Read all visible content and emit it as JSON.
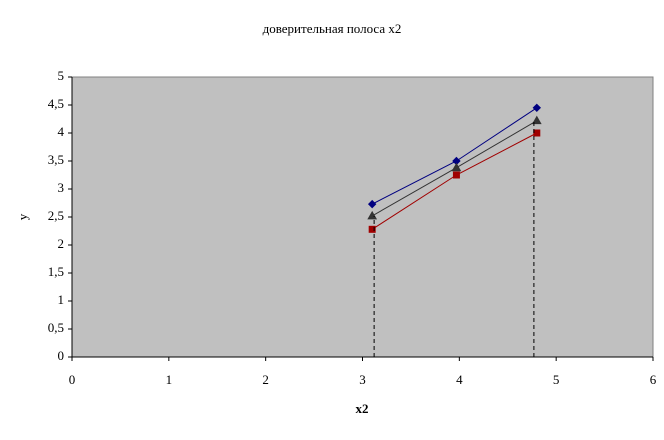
{
  "chart_data": {
    "type": "scatter",
    "title": "доверительная полоса x2",
    "x_label": "x2",
    "y_label": "y",
    "background": "#c0c0c0",
    "xlim": [
      0,
      6
    ],
    "xticks": [
      0,
      1,
      2,
      3,
      4,
      5,
      6
    ],
    "ylim": [
      0,
      5
    ],
    "yticks": [
      0,
      {
        "value": 0.5,
        "label": "0,5"
      },
      1,
      {
        "value": 1.5,
        "label": "1,5"
      },
      2,
      {
        "value": 2.5,
        "label": "2,5"
      },
      3,
      {
        "value": 3.5,
        "label": "3,5"
      },
      4,
      {
        "value": 4.5,
        "label": "4,5"
      },
      5
    ],
    "series": [
      {
        "color": "#000080",
        "marker": "diamond",
        "x": [
          3.1,
          3.97,
          4.8
        ],
        "values": [
          2.73,
          3.5,
          4.45
        ]
      },
      {
        "color": "#333333",
        "marker": "triangle",
        "x": [
          3.1,
          3.97,
          4.8
        ],
        "values": [
          2.52,
          3.38,
          4.22
        ]
      },
      {
        "color": "#a00000",
        "marker": "square",
        "x": [
          3.1,
          3.97,
          4.8
        ],
        "values": [
          2.28,
          3.25,
          4.0
        ]
      },
      {
        "color": "#000000",
        "marker": "none",
        "dashed": true,
        "x": [
          3.12,
          3.12
        ],
        "values": [
          0,
          2.52
        ]
      },
      {
        "color": "#000000",
        "marker": "none",
        "dashed": true,
        "x": [
          4.77,
          4.77
        ],
        "values": [
          0,
          4.22
        ]
      }
    ]
  }
}
